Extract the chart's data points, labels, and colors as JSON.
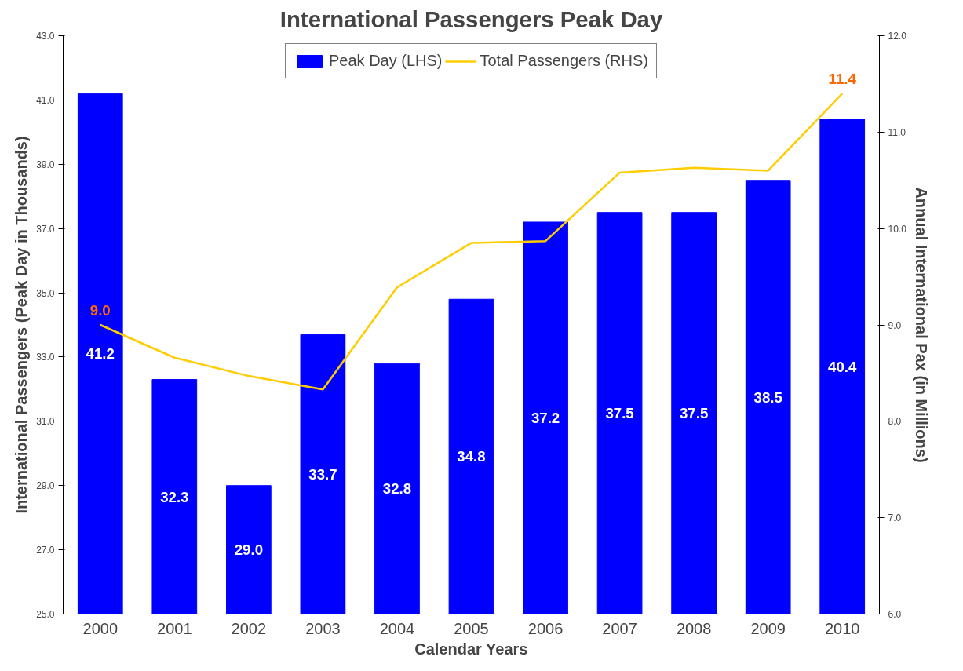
{
  "chart_data": {
    "type": "bar",
    "title": "International Passengers Peak Day",
    "xlabel": "Calendar Years",
    "ylabel": "International Passengers (Peak Day in Thousands)",
    "y2label": "Annual International Pax (in Millions)",
    "categories": [
      "2000",
      "2001",
      "2002",
      "2003",
      "2004",
      "2005",
      "2006",
      "2007",
      "2008",
      "2009",
      "2010"
    ],
    "series": [
      {
        "name": "Peak Day (LHS)",
        "color": "#0000ff",
        "values": [
          41.2,
          32.3,
          29.0,
          33.7,
          32.8,
          34.8,
          37.2,
          37.5,
          37.5,
          38.5,
          40.4
        ],
        "value_labels": [
          "41.2",
          "32.3",
          "29.0",
          "33.7",
          "32.8",
          "34.8",
          "37.2",
          "37.5",
          "37.5",
          "38.5",
          "40.4"
        ]
      },
      {
        "name": "Total Passengers (RHS)",
        "type": "line",
        "axis": "y2",
        "color": "#ffcc00",
        "values": [
          9.0,
          8.66,
          8.47,
          8.33,
          9.39,
          9.85,
          9.87,
          10.58,
          10.63,
          10.6,
          11.4
        ],
        "value_labels": [
          "9.0",
          null,
          null,
          null,
          null,
          null,
          null,
          null,
          null,
          null,
          "11.4"
        ]
      }
    ],
    "ylim": [
      25,
      43
    ],
    "yticks": [
      {
        "value": 25,
        "label": "25.0"
      },
      {
        "value": 27,
        "label": "27.0"
      },
      {
        "value": 29,
        "label": "29.0"
      },
      {
        "value": 31,
        "label": "31.0"
      },
      {
        "value": 33,
        "label": "33.0"
      },
      {
        "value": 35,
        "label": "35.0"
      },
      {
        "value": 37,
        "label": "37.0"
      },
      {
        "value": 39,
        "label": "39.0"
      },
      {
        "value": 41,
        "label": "41.0"
      },
      {
        "value": 43,
        "label": "43.0"
      }
    ],
    "y2lim": [
      6,
      12
    ],
    "y2ticks": [
      {
        "value": 6,
        "label": "6.0"
      },
      {
        "value": 7,
        "label": "7.0"
      },
      {
        "value": 8,
        "label": "8.0"
      },
      {
        "value": 9,
        "label": "9.0"
      },
      {
        "value": 10,
        "label": "10.0"
      },
      {
        "value": 11,
        "label": "11.0"
      },
      {
        "value": 12,
        "label": "12.0"
      }
    ],
    "grid": false,
    "legend": "top",
    "marker": "none",
    "line_style": "solid"
  }
}
